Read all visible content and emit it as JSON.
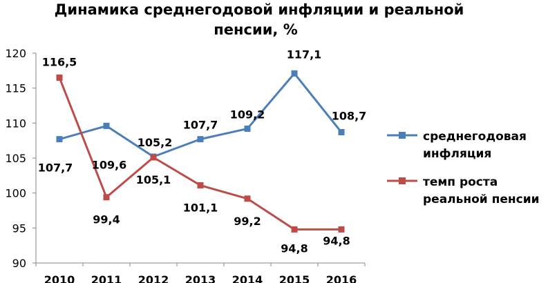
{
  "chart_data": {
    "type": "line",
    "title_lines": [
      "Динамика среднегодовой инфляции и реальной",
      "пенсии, %"
    ],
    "categories": [
      "2010",
      "2011",
      "2012",
      "2013",
      "2014",
      "2015",
      "2016"
    ],
    "ylim": [
      90,
      120
    ],
    "yticks": [
      "90",
      "95",
      "100",
      "105",
      "110",
      "115",
      "120"
    ],
    "grid": false,
    "legend_position": "right",
    "series": [
      {
        "name": "среднегодовая инфляция",
        "name_lines": [
          "среднегодовая",
          "инфляция"
        ],
        "color": "#4a7ebb",
        "values": [
          107.7,
          109.6,
          105.2,
          107.7,
          109.2,
          117.1,
          108.7
        ],
        "labels": [
          "107,7",
          "109,6",
          "105,2",
          "107,7",
          "109,2",
          "117,1",
          "108,7"
        ]
      },
      {
        "name": "темп роста реальной пенсии",
        "name_lines": [
          "темп роста",
          "реальной пенсии"
        ],
        "color": "#be4b48",
        "values": [
          116.5,
          99.4,
          105.1,
          101.1,
          99.2,
          94.8,
          94.8
        ],
        "labels": [
          "116,5",
          "99,4",
          "105,1",
          "101,1",
          "99,2",
          "94,8",
          "94,8"
        ]
      }
    ]
  }
}
